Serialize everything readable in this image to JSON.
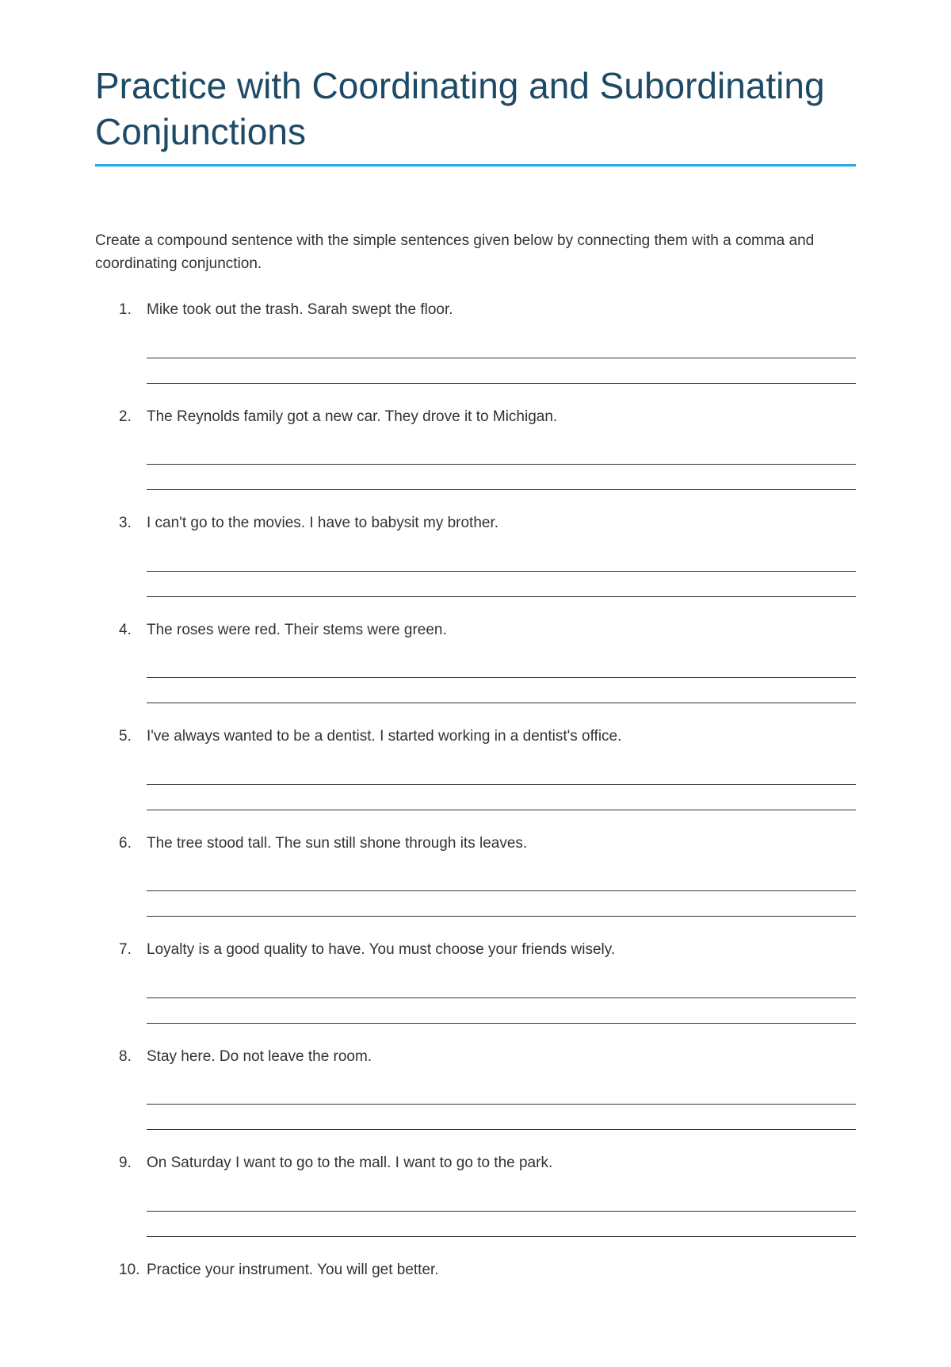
{
  "title": "Practice with Coordinating and Subordinating Conjunctions",
  "instructions": "Create a compound sentence with the simple sentences given below by connecting them with a comma and coordinating conjunction.",
  "questions": [
    {
      "number": "1.",
      "text": "Mike took out the trash. Sarah swept the floor."
    },
    {
      "number": "2.",
      "text": "The Reynolds family got a new car. They drove it to Michigan."
    },
    {
      "number": "3.",
      "text": "I can't go to the movies. I have to babysit my brother."
    },
    {
      "number": "4.",
      "text": "The roses were red. Their stems were green."
    },
    {
      "number": "5.",
      "text": "I've always wanted to be a dentist. I started working in a dentist's office."
    },
    {
      "number": "6.",
      "text": "The tree stood tall. The sun still shone through its leaves."
    },
    {
      "number": "7.",
      "text": "Loyalty is a good quality to have. You must choose your friends wisely."
    },
    {
      "number": "8.",
      "text": "Stay here. Do not leave the room."
    },
    {
      "number": "9.",
      "text": "On Saturday I want to go to the mall. I want to go to the park."
    },
    {
      "number": "10.",
      "text": "Practice your instrument. You will get better."
    }
  ],
  "colors": {
    "title_color": "#1e4a66",
    "underline_color": "#29abe2",
    "text_color": "#333333",
    "background_color": "#ffffff",
    "line_color": "#333333"
  },
  "typography": {
    "title_fontsize": 46,
    "body_fontsize": 19,
    "font_family": "Verdana, Geneva, sans-serif"
  }
}
